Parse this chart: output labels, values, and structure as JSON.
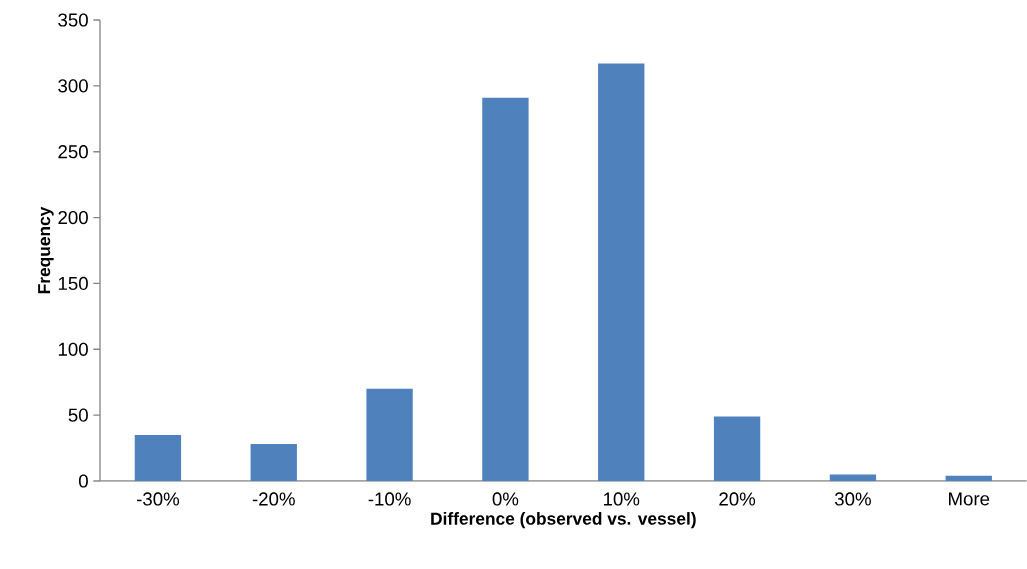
{
  "chart_data": {
    "type": "bar",
    "xlabel": "Difference (observed vs. vessel)",
    "ylabel": "Frequency",
    "categories": [
      "-30%",
      "-20%",
      "-10%",
      "0%",
      "10%",
      "20%",
      "30%",
      "More"
    ],
    "values": [
      35,
      28,
      70,
      291,
      317,
      49,
      5,
      4
    ],
    "color": "#4f81bd",
    "ylim": [
      0,
      350
    ],
    "yticks": [
      0,
      50,
      100,
      150,
      200,
      250,
      300,
      350
    ],
    "grid": false
  }
}
